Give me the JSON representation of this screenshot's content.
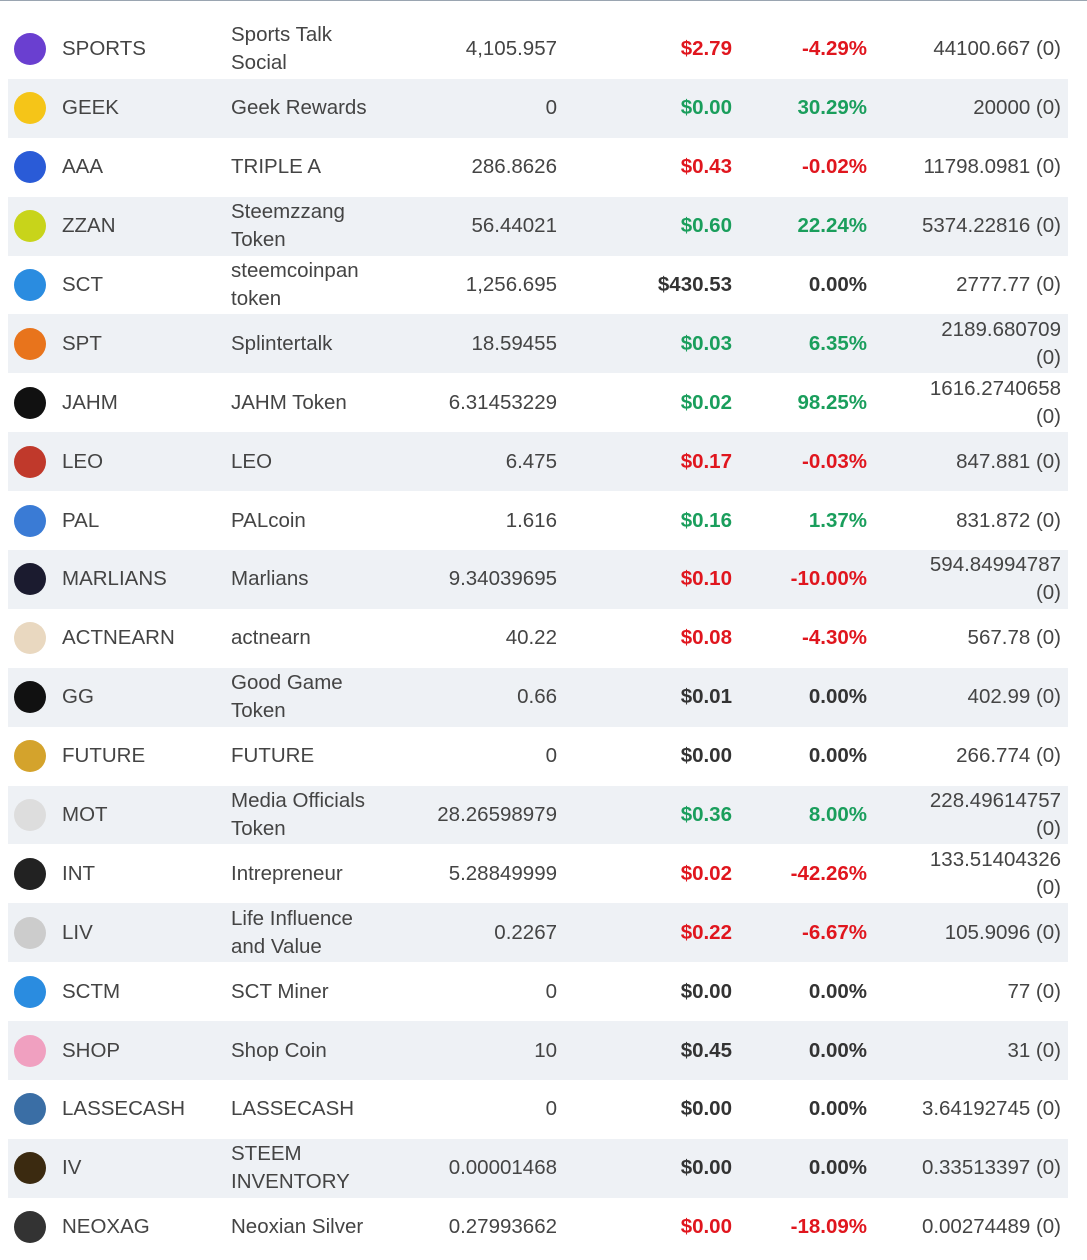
{
  "table": {
    "rows": [
      {
        "symbol": "SPORTS",
        "name": "Sports Talk Social",
        "balance": "4,105.957",
        "price": "$2.79",
        "change": "-4.29%",
        "stake": "44100.667 (0)",
        "color": "#e0161e"
      },
      {
        "symbol": "GEEK",
        "name": "Geek Rewards",
        "balance": "0",
        "price": "$0.00",
        "change": "30.29%",
        "stake": "20000 (0)",
        "color": "#1a9e5c"
      },
      {
        "symbol": "AAA",
        "name": "TRIPLE A",
        "balance": "286.8626",
        "price": "$0.43",
        "change": "-0.02%",
        "stake": "11798.0981 (0)",
        "color": "#e0161e"
      },
      {
        "symbol": "ZZAN",
        "name": "Steemzzang Token",
        "balance": "56.44021",
        "price": "$0.60",
        "change": "22.24%",
        "stake": "5374.22816 (0)",
        "color": "#1a9e5c"
      },
      {
        "symbol": "SCT",
        "name": "steemcoinpan token",
        "balance": "1,256.695",
        "price": "$430.53",
        "change": "0.00%",
        "stake": "2777.77 (0)",
        "color": "#333333"
      },
      {
        "symbol": "SPT",
        "name": "Splintertalk",
        "balance": "18.59455",
        "price": "$0.03",
        "change": "6.35%",
        "stake": "2189.680709 (0)",
        "color": "#1a9e5c"
      },
      {
        "symbol": "JAHM",
        "name": "JAHM Token",
        "balance": "6.31453229",
        "price": "$0.02",
        "change": "98.25%",
        "stake": "1616.2740658 (0)",
        "color": "#1a9e5c"
      },
      {
        "symbol": "LEO",
        "name": "LEO",
        "balance": "6.475",
        "price": "$0.17",
        "change": "-0.03%",
        "stake": "847.881 (0)",
        "color": "#e0161e"
      },
      {
        "symbol": "PAL",
        "name": "PALcoin",
        "balance": "1.616",
        "price": "$0.16",
        "change": "1.37%",
        "stake": "831.872 (0)",
        "color": "#1a9e5c"
      },
      {
        "symbol": "MARLIANS",
        "name": "Marlians",
        "balance": "9.34039695",
        "price": "$0.10",
        "change": "-10.00%",
        "stake": "594.84994787 (0)",
        "color": "#e0161e"
      },
      {
        "symbol": "ACTNEARN",
        "name": "actnearn",
        "balance": "40.22",
        "price": "$0.08",
        "change": "-4.30%",
        "stake": "567.78 (0)",
        "color": "#e0161e"
      },
      {
        "symbol": "GG",
        "name": "Good Game Token",
        "balance": "0.66",
        "price": "$0.01",
        "change": "0.00%",
        "stake": "402.99 (0)",
        "color": "#333333"
      },
      {
        "symbol": "FUTURE",
        "name": "FUTURE",
        "balance": "0",
        "price": "$0.00",
        "change": "0.00%",
        "stake": "266.774 (0)",
        "color": "#333333"
      },
      {
        "symbol": "MOT",
        "name": "Media Officials Token",
        "balance": "28.26598979",
        "price": "$0.36",
        "change": "8.00%",
        "stake": "228.49614757 (0)",
        "color": "#1a9e5c"
      },
      {
        "symbol": "INT",
        "name": "Intrepreneur",
        "balance": "5.28849999",
        "price": "$0.02",
        "change": "-42.26%",
        "stake": "133.51404326 (0)",
        "color": "#e0161e"
      },
      {
        "symbol": "LIV",
        "name": "Life Influence and Value",
        "balance": "0.2267",
        "price": "$0.22",
        "change": "-6.67%",
        "stake": "105.9096 (0)",
        "color": "#e0161e"
      },
      {
        "symbol": "SCTM",
        "name": "SCT Miner",
        "balance": "0",
        "price": "$0.00",
        "change": "0.00%",
        "stake": "77 (0)",
        "color": "#333333"
      },
      {
        "symbol": "SHOP",
        "name": "Shop Coin",
        "balance": "10",
        "price": "$0.45",
        "change": "0.00%",
        "stake": "31 (0)",
        "color": "#333333"
      },
      {
        "symbol": "LASSECASH",
        "name": "LASSECASH",
        "balance": "0",
        "price": "$0.00",
        "change": "0.00%",
        "stake": "3.64192745 (0)",
        "color": "#333333"
      },
      {
        "symbol": "IV",
        "name": "STEEM INVENTORY",
        "balance": "0.00001468",
        "price": "$0.00",
        "change": "0.00%",
        "stake": "0.33513397 (0)",
        "color": "#333333"
      },
      {
        "symbol": "NEOXAG",
        "name": "Neoxian Silver",
        "balance": "0.27993662",
        "price": "$0.00",
        "change": "-18.09%",
        "stake": "0.00274489 (0)",
        "color": "#e0161e"
      }
    ]
  }
}
